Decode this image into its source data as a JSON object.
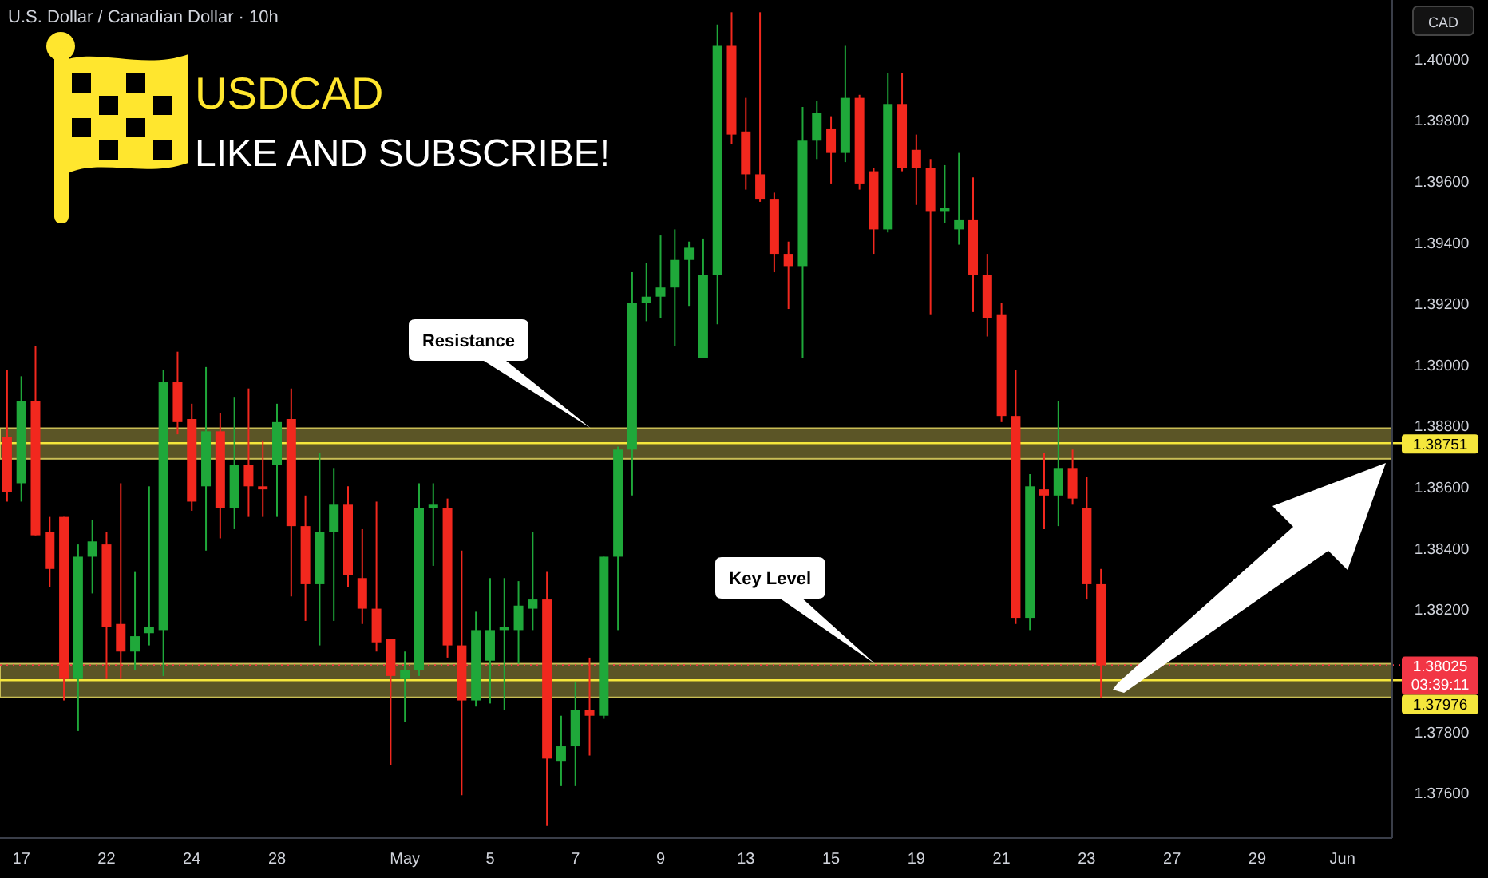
{
  "chart_data": {
    "type": "candlestick",
    "title": "U.S. Dollar / Canadian Dollar · 10h",
    "subtitle": "USDCAD",
    "annotations": [
      "LIKE AND SUBSCRIBE!",
      "Resistance",
      "Key Level",
      "CAD",
      "03:39:11"
    ],
    "categories": [
      null,
      "17",
      null,
      null,
      null,
      null,
      null,
      "22",
      null,
      null,
      null,
      null,
      null,
      "24",
      null,
      null,
      null,
      null,
      null,
      "28",
      null,
      null,
      null,
      null,
      null,
      null,
      null,
      null,
      "May",
      null,
      null,
      null,
      null,
      null,
      "5",
      null,
      null,
      null,
      null,
      null,
      "7",
      null,
      null,
      null,
      null,
      null,
      "9",
      null,
      null,
      null,
      null,
      null,
      "13",
      null,
      null,
      null,
      null,
      null,
      "15",
      null,
      null,
      null,
      null,
      null,
      "19",
      null,
      null,
      null,
      null,
      null,
      "21",
      null,
      null,
      null,
      null,
      null,
      "23",
      null,
      null,
      null,
      null,
      null,
      "27",
      null,
      null,
      null,
      null,
      null,
      "29",
      null,
      null,
      null,
      null,
      null,
      "Jun",
      null,
      null,
      null
    ],
    "ohlc": [
      [
        1.3877,
        1.3899,
        1.3856,
        1.3859
      ],
      [
        1.3862,
        1.3897,
        1.3856,
        1.3889
      ],
      [
        1.3889,
        1.3907,
        1.3845,
        1.3845
      ],
      [
        1.3846,
        1.3851,
        1.3828,
        1.3834
      ],
      [
        1.3851,
        1.3851,
        1.3791,
        1.3798
      ],
      [
        1.3798,
        1.3842,
        1.3781,
        1.3838
      ],
      [
        1.3838,
        1.385,
        1.3826,
        1.3843
      ],
      [
        1.3842,
        1.3846,
        1.3798,
        1.3815
      ],
      [
        1.3816,
        1.3862,
        1.3798,
        1.3807
      ],
      [
        1.3807,
        1.3833,
        1.3801,
        1.3812
      ],
      [
        1.3813,
        1.3861,
        1.3809,
        1.3815
      ],
      [
        1.3814,
        1.3899,
        1.3799,
        1.3895
      ],
      [
        1.3895,
        1.3905,
        1.3878,
        1.3882
      ],
      [
        1.3883,
        1.3888,
        1.3853,
        1.3856
      ],
      [
        1.3861,
        1.39,
        1.384,
        1.3879
      ],
      [
        1.3879,
        1.3885,
        1.3844,
        1.3854
      ],
      [
        1.3854,
        1.389,
        1.3847,
        1.3868
      ],
      [
        1.3868,
        1.3893,
        1.3851,
        1.3861
      ],
      [
        1.3861,
        1.3876,
        1.3851,
        1.386
      ],
      [
        1.3868,
        1.3888,
        1.3851,
        1.3882
      ],
      [
        1.3883,
        1.3893,
        1.3825,
        1.3848
      ],
      [
        1.3848,
        1.3858,
        1.3817,
        1.3829
      ],
      [
        1.3829,
        1.3872,
        1.3809,
        1.3846
      ],
      [
        1.3846,
        1.3867,
        1.3817,
        1.3855
      ],
      [
        1.3855,
        1.3861,
        1.3828,
        1.3832
      ],
      [
        1.3831,
        1.3847,
        1.3816,
        1.3821
      ],
      [
        1.3821,
        1.3856,
        1.3807,
        1.381
      ],
      [
        1.3811,
        1.3811,
        1.377,
        1.3799
      ],
      [
        1.3798,
        1.3807,
        1.3784,
        1.3801
      ],
      [
        1.3801,
        1.3862,
        1.3799,
        1.3854
      ],
      [
        1.3854,
        1.3862,
        1.3835,
        1.3855
      ],
      [
        1.3854,
        1.3857,
        1.3805,
        1.3809
      ],
      [
        1.3809,
        1.384,
        1.376,
        1.3791
      ],
      [
        1.3791,
        1.382,
        1.3789,
        1.3814
      ],
      [
        1.3804,
        1.3831,
        1.379,
        1.3814
      ],
      [
        1.3814,
        1.3831,
        1.3788,
        1.3815
      ],
      [
        1.3814,
        1.383,
        1.3803,
        1.3822
      ],
      [
        1.3821,
        1.3846,
        1.3814,
        1.3824
      ],
      [
        1.3824,
        1.3833,
        1.375,
        1.3772
      ],
      [
        1.3771,
        1.3786,
        1.3763,
        1.3776
      ],
      [
        1.3776,
        1.3797,
        1.3763,
        1.3788
      ],
      [
        1.3788,
        1.3805,
        1.3773,
        1.3786
      ],
      [
        1.3786,
        1.3838,
        1.3785,
        1.3838
      ],
      [
        1.3838,
        1.3874,
        1.3814,
        1.3873
      ],
      [
        1.3873,
        1.3931,
        1.3858,
        1.3921
      ],
      [
        1.3921,
        1.3934,
        1.3915,
        1.3923
      ],
      [
        1.3923,
        1.3943,
        1.3916,
        1.3926
      ],
      [
        1.3926,
        1.3945,
        1.3907,
        1.3935
      ],
      [
        1.3935,
        1.3941,
        1.392,
        1.3939
      ],
      [
        1.3903,
        1.3942,
        1.3903,
        1.393
      ],
      [
        1.393,
        1.4012,
        1.3914,
        1.4005
      ],
      [
        1.4005,
        1.4016,
        1.3973,
        1.3976
      ],
      [
        1.3977,
        1.3988,
        1.3958,
        1.3963
      ],
      [
        1.3963,
        1.4016,
        1.3954,
        1.3955
      ],
      [
        1.3955,
        1.3957,
        1.3931,
        1.3937
      ],
      [
        1.3937,
        1.3941,
        1.3919,
        1.3933
      ],
      [
        1.3933,
        1.3985,
        1.3903,
        1.3974
      ],
      [
        1.3974,
        1.3987,
        1.3968,
        1.3983
      ],
      [
        1.3978,
        1.3982,
        1.396,
        1.397
      ],
      [
        1.397,
        1.4005,
        1.3967,
        1.3988
      ],
      [
        1.3988,
        1.3989,
        1.3958,
        1.396
      ],
      [
        1.3964,
        1.3965,
        1.3937,
        1.3945
      ],
      [
        1.3945,
        1.3996,
        1.3944,
        1.3986
      ],
      [
        1.3986,
        1.3996,
        1.3964,
        1.3965
      ],
      [
        1.3971,
        1.3976,
        1.3953,
        1.3965
      ],
      [
        1.3965,
        1.3968,
        1.3917,
        1.3951
      ],
      [
        1.3951,
        1.3966,
        1.3947,
        1.3952
      ],
      [
        1.3945,
        1.397,
        1.394,
        1.3948
      ],
      [
        1.3948,
        1.3962,
        1.3918,
        1.393
      ],
      [
        1.393,
        1.3937,
        1.391,
        1.3916
      ],
      [
        1.3917,
        1.3921,
        1.3882,
        1.3884
      ],
      [
        1.3884,
        1.3899,
        1.3816,
        1.3818
      ],
      [
        1.3818,
        1.3865,
        1.3814,
        1.3861
      ],
      [
        1.386,
        1.3872,
        1.3847,
        1.3858
      ],
      [
        1.3858,
        1.3889,
        1.3848,
        1.3867
      ],
      [
        1.3867,
        1.3873,
        1.3855,
        1.3857
      ],
      [
        1.3854,
        1.3864,
        1.3824,
        1.3829
      ],
      [
        1.3829,
        1.3834,
        1.3792,
        1.38025
      ],
      null,
      null,
      null,
      null,
      null,
      null,
      null,
      null,
      null,
      null,
      null,
      null,
      null,
      null,
      null,
      null,
      null,
      null,
      null,
      null
    ],
    "colors": [
      "#f2281e",
      "#1fa83a",
      "#f2281e",
      "#f2281e",
      "#f2281e",
      "#1fa83a",
      "#1fa83a",
      "#f2281e",
      "#f2281e",
      "#1fa83a",
      "#1fa83a",
      "#1fa83a",
      "#f2281e",
      "#f2281e",
      "#1fa83a",
      "#f2281e",
      "#1fa83a",
      "#f2281e",
      "#f2281e",
      "#1fa83a",
      "#f2281e",
      "#f2281e",
      "#1fa83a",
      "#1fa83a",
      "#f2281e",
      "#f2281e",
      "#f2281e",
      "#f2281e",
      "#1fa83a",
      "#1fa83a",
      "#1fa83a",
      "#f2281e",
      "#f2281e",
      "#1fa83a",
      "#1fa83a",
      "#1fa83a",
      "#1fa83a",
      "#1fa83a",
      "#f2281e",
      "#1fa83a",
      "#1fa83a",
      "#f2281e",
      "#1fa83a",
      "#1fa83a",
      "#1fa83a",
      "#1fa83a",
      "#1fa83a",
      "#1fa83a",
      "#1fa83a",
      "#1fa83a",
      "#1fa83a",
      "#f2281e",
      "#f2281e",
      "#f2281e",
      "#f2281e",
      "#f2281e",
      "#1fa83a",
      "#1fa83a",
      "#f2281e",
      "#1fa83a",
      "#f2281e",
      "#f2281e",
      "#1fa83a",
      "#f2281e",
      "#f2281e",
      "#f2281e",
      "#1fa83a",
      "#1fa83a",
      "#f2281e",
      "#f2281e",
      "#f2281e",
      "#f2281e",
      "#1fa83a",
      "#f2281e",
      "#1fa83a",
      "#f2281e",
      "#f2281e",
      "#f2281e",
      null,
      null,
      null,
      null,
      null,
      null,
      null,
      null,
      null,
      null,
      null,
      null,
      null,
      null,
      null,
      null,
      null,
      null,
      null,
      null
    ],
    "ylim": [
      1.3746,
      1.402
    ],
    "yticks": [
      {
        "value": 1.376,
        "label": "1.37600"
      },
      {
        "value": 1.378,
        "label": "1.37800"
      },
      {
        "value": 1.382,
        "label": "1.38200"
      },
      {
        "value": 1.384,
        "label": "1.38400"
      },
      {
        "value": 1.386,
        "label": "1.38600"
      },
      {
        "value": 1.388,
        "label": "1.38800"
      },
      {
        "value": 1.39,
        "label": "1.39000"
      },
      {
        "value": 1.392,
        "label": "1.39200"
      },
      {
        "value": 1.394,
        "label": "1.39400"
      },
      {
        "value": 1.396,
        "label": "1.39600"
      },
      {
        "value": 1.398,
        "label": "1.39800"
      },
      {
        "value": 1.4,
        "label": "1.40000"
      }
    ],
    "bands": [
      {
        "axis": "y",
        "from": 1.387,
        "to": 1.388,
        "color": "#c9bd55"
      },
      {
        "axis": "y",
        "from": 1.3792,
        "to": 1.3803,
        "color": "#c9bd55"
      }
    ],
    "ref_lines": [
      {
        "axis": "y",
        "value": 1.38751,
        "label": "1.38751",
        "color": "#f5e63c"
      },
      {
        "axis": "y",
        "value": 1.38025,
        "label": "1.38025",
        "color": "#f23645",
        "line_style": "dotted"
      },
      {
        "axis": "y",
        "value": 1.37976,
        "label": "1.37976",
        "color": "#f5e63c"
      }
    ]
  }
}
